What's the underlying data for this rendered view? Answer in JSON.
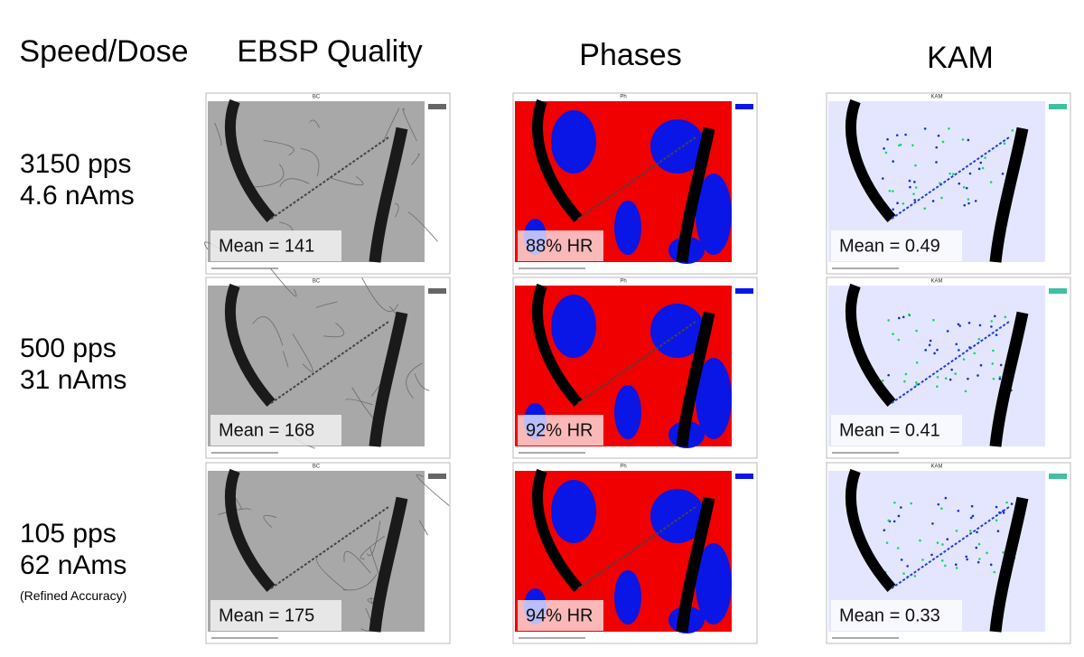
{
  "headers": [
    "Speed/Dose",
    "EBSP Quality",
    "Phases",
    "KAM"
  ],
  "rows": [
    {
      "speed": "3150 pps",
      "dose": "4.6 nAms",
      "quality": "Mean = 141",
      "phases": "88% HR",
      "kam": "Mean = 0.49"
    },
    {
      "speed": "500 pps",
      "dose": "31 nAms",
      "quality": "Mean = 168",
      "phases": "92% HR",
      "kam": "Mean = 0.41"
    },
    {
      "speed": "105 pps",
      "dose": "62 nAms",
      "note": "(Refined Accuracy)",
      "quality": "Mean = 175",
      "phases": "94% HR",
      "kam": "Mean = 0.33"
    }
  ],
  "panel_titles": {
    "quality": "BC",
    "phases": "Ph",
    "kam": "KAM"
  }
}
